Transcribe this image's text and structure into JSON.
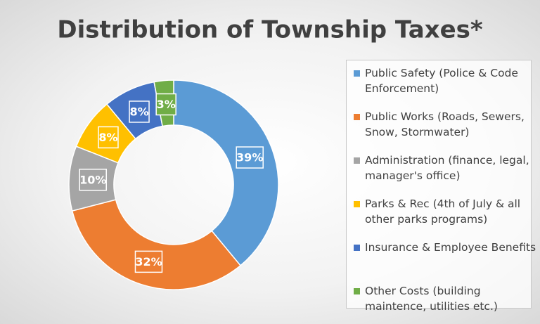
{
  "chart_data": {
    "type": "donut",
    "title": "Distribution of Township Taxes*",
    "categories": [
      "Public Safety (Police & Code Enforcement)",
      "Public Works (Roads, Sewers, Snow, Stormwater)",
      "Administration (finance, legal, manager's office)",
      "Parks & Rec (4th of July & all other parks programs)",
      "Insurance & Employee Benefits",
      "Other Costs (building maintence, utilities etc.)"
    ],
    "values": [
      39,
      32,
      10,
      8,
      8,
      3
    ],
    "value_labels": [
      "39%",
      "32%",
      "10%",
      "8%",
      "8%",
      "3%"
    ],
    "colors": [
      "#5b9bd5",
      "#ed7d31",
      "#a5a5a5",
      "#ffc000",
      "#4472c4",
      "#70ad47"
    ],
    "legend": "right"
  }
}
